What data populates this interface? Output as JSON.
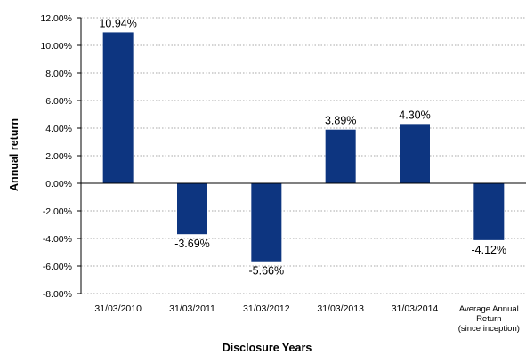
{
  "chart_data": {
    "type": "bar",
    "categories": [
      [
        "31/03/2010"
      ],
      [
        "31/03/2011"
      ],
      [
        "31/03/2012"
      ],
      [
        "31/03/2013"
      ],
      [
        "31/03/2014"
      ],
      [
        "Average Annual",
        "Return",
        "(since inception)"
      ]
    ],
    "values": [
      10.94,
      -3.69,
      -5.66,
      3.89,
      4.3,
      -4.12
    ],
    "data_labels": [
      "10.94%",
      "-3.69%",
      "-5.66%",
      "3.89%",
      "4.30%",
      "-4.12%"
    ],
    "yticks": [
      12,
      10,
      8,
      6,
      4,
      2,
      0,
      -2,
      -4,
      -6,
      -8
    ],
    "ytick_labels": [
      "12.00%",
      "10.00%",
      "8.00%",
      "6.00%",
      "4.00%",
      "2.00%",
      "0.00%",
      "-2.00%",
      "-4.00%",
      "-6.00%",
      "-8.00%"
    ],
    "ylim": [
      -8,
      12
    ],
    "xlabel": "Disclosure Years",
    "ylabel": "Annual return",
    "grid": true,
    "bar_color": "#0d3580"
  }
}
